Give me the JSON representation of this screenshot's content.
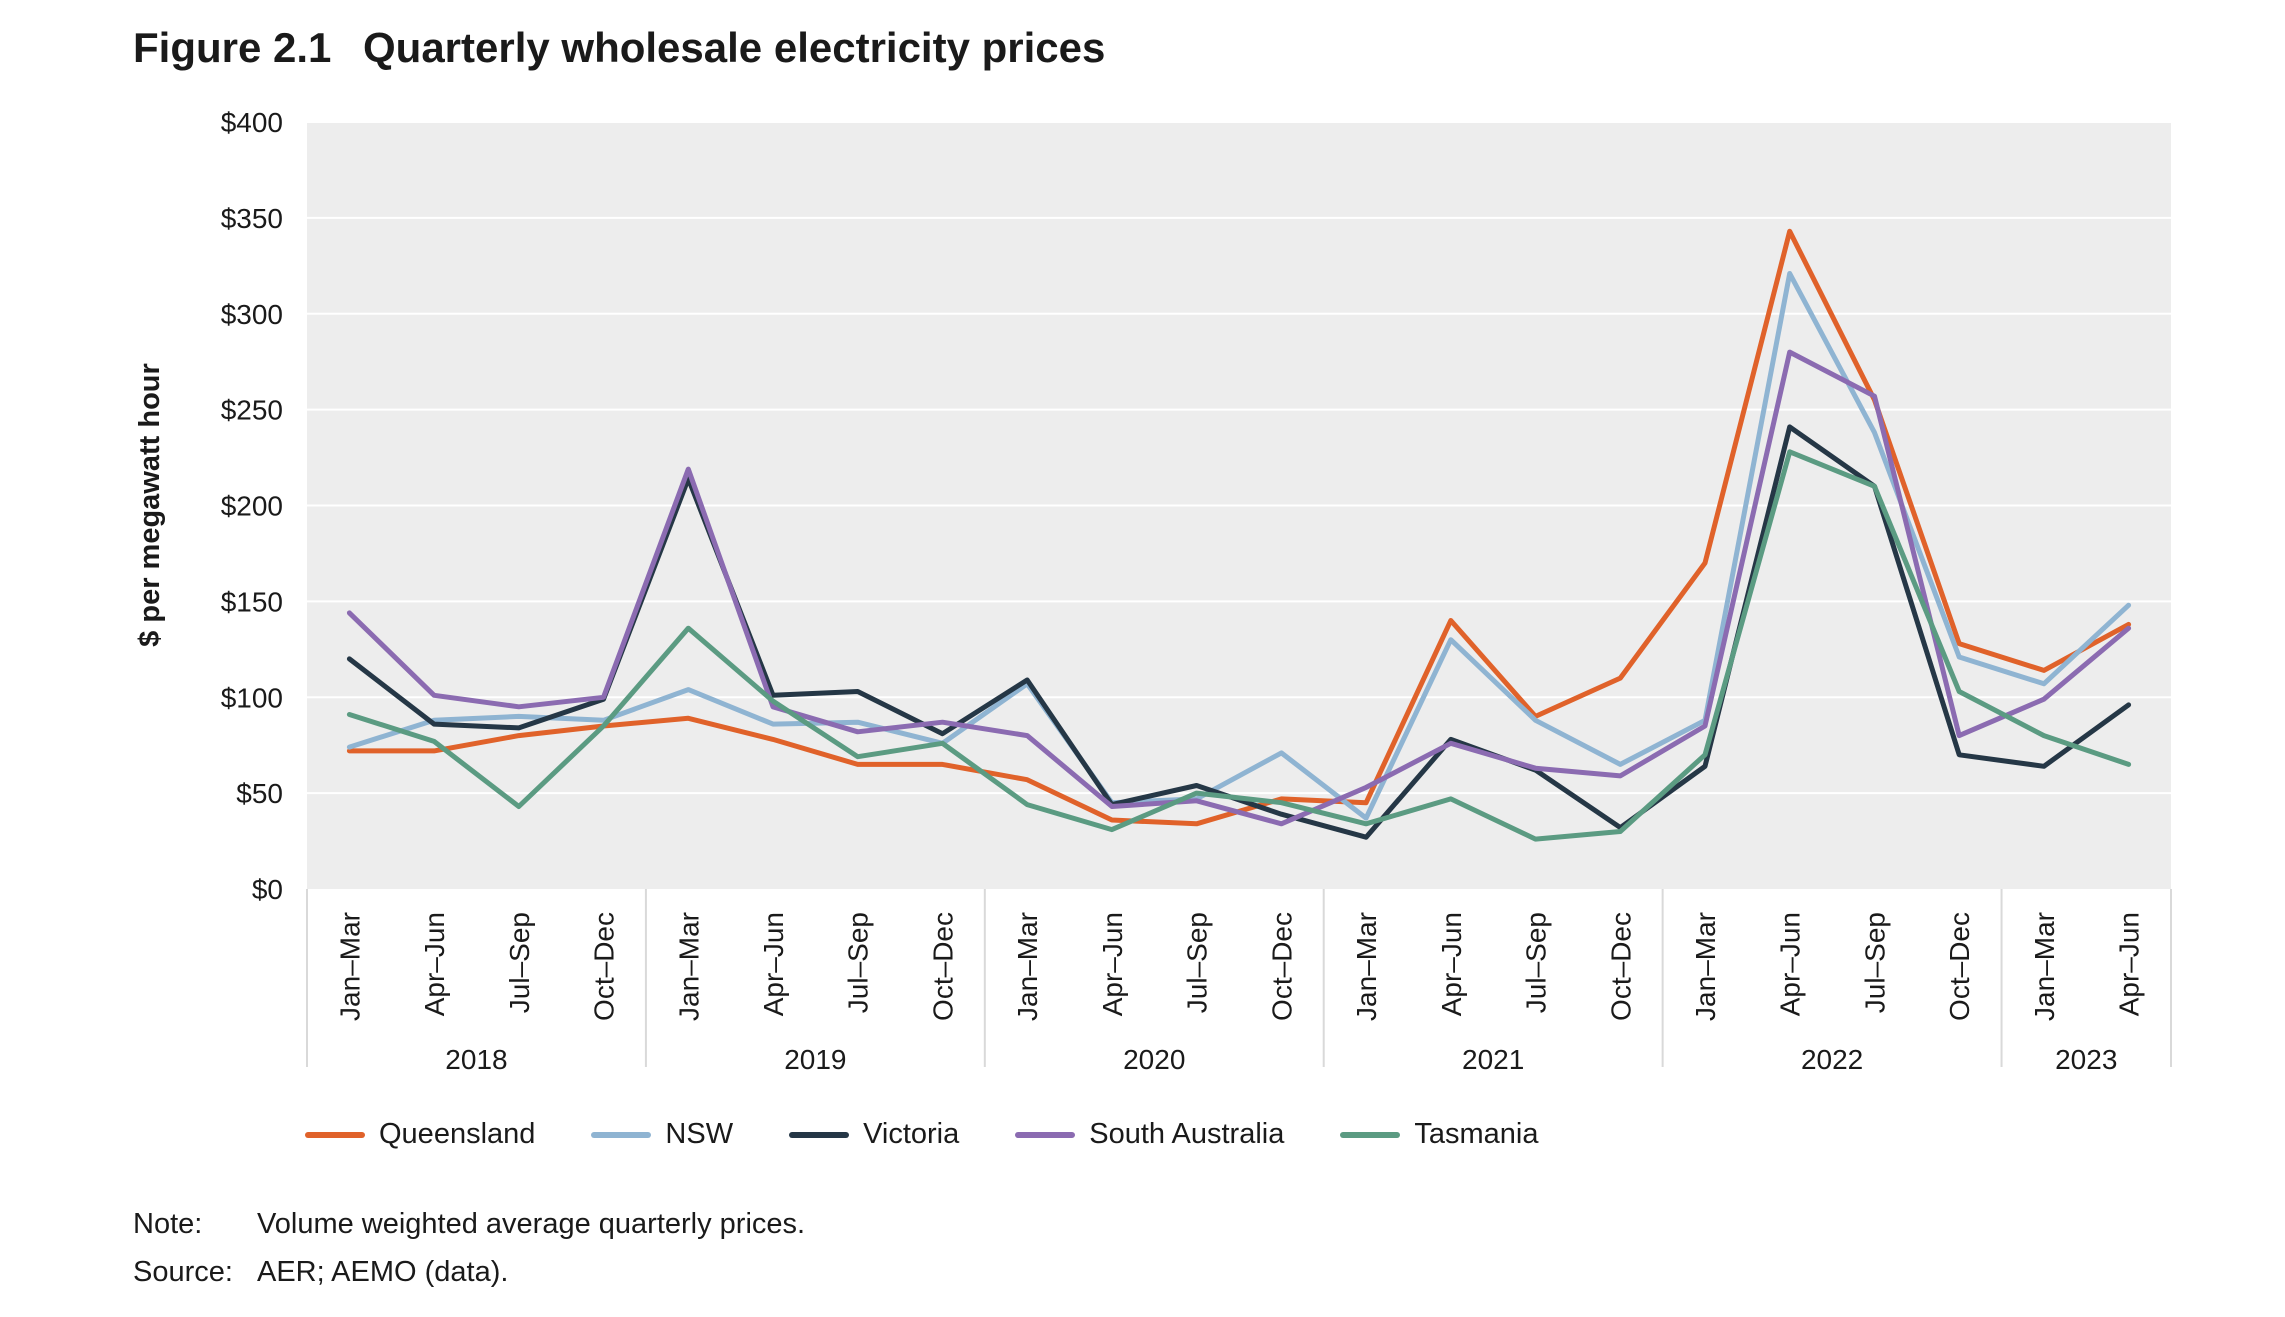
{
  "figure": {
    "number": "Figure 2.1",
    "title": "Quarterly wholesale electricity prices"
  },
  "chart_data": {
    "type": "line",
    "title": "Quarterly wholesale electricity prices",
    "ylabel": "$ per megawatt hour",
    "xlabel": "",
    "ylim": [
      0,
      400
    ],
    "yticks": [
      0,
      50,
      100,
      150,
      200,
      250,
      300,
      350,
      400
    ],
    "ytick_labels": [
      "$0",
      "$50",
      "$100",
      "$150",
      "$200",
      "$250",
      "$300",
      "$350",
      "$400"
    ],
    "grid": true,
    "legend_position": "bottom",
    "categories": [
      "Jan–Mar",
      "Apr–Jun",
      "Jul–Sep",
      "Oct–Dec",
      "Jan–Mar",
      "Apr–Jun",
      "Jul–Sep",
      "Oct–Dec",
      "Jan–Mar",
      "Apr–Jun",
      "Jul–Sep",
      "Oct–Dec",
      "Jan–Mar",
      "Apr–Jun",
      "Jul–Sep",
      "Oct–Dec",
      "Jan–Mar",
      "Apr–Jun",
      "Jul–Sep",
      "Oct–Dec",
      "Jan–Mar",
      "Apr–Jun"
    ],
    "year_groups": [
      {
        "label": "2018",
        "count": 4
      },
      {
        "label": "2019",
        "count": 4
      },
      {
        "label": "2020",
        "count": 4
      },
      {
        "label": "2021",
        "count": 4
      },
      {
        "label": "2022",
        "count": 4
      },
      {
        "label": "2023",
        "count": 2
      }
    ],
    "series": [
      {
        "name": "Queensland",
        "color": "#E0622A",
        "values": [
          72,
          72,
          80,
          85,
          89,
          78,
          65,
          65,
          57,
          36,
          34,
          47,
          45,
          140,
          90,
          110,
          170,
          343,
          255,
          128,
          114,
          138
        ]
      },
      {
        "name": "NSW",
        "color": "#8FB4D2",
        "values": [
          74,
          88,
          90,
          88,
          104,
          86,
          87,
          76,
          107,
          45,
          47,
          71,
          37,
          130,
          88,
          65,
          88,
          321,
          238,
          121,
          107,
          148
        ]
      },
      {
        "name": "Victoria",
        "color": "#253746",
        "values": [
          120,
          86,
          84,
          99,
          214,
          101,
          103,
          81,
          109,
          44,
          54,
          39,
          27,
          78,
          62,
          32,
          64,
          241,
          210,
          70,
          64,
          96
        ]
      },
      {
        "name": "South Australia",
        "color": "#8B6BB1",
        "values": [
          144,
          101,
          95,
          100,
          219,
          95,
          82,
          87,
          80,
          43,
          46,
          34,
          53,
          76,
          63,
          59,
          85,
          280,
          257,
          80,
          99,
          136
        ]
      },
      {
        "name": "Tasmania",
        "color": "#5B9B82",
        "values": [
          91,
          77,
          43,
          85,
          136,
          98,
          69,
          76,
          44,
          31,
          50,
          45,
          34,
          47,
          26,
          30,
          70,
          228,
          210,
          103,
          80,
          65
        ]
      }
    ]
  },
  "notes": {
    "note_label": "Note:",
    "note_text": "Volume weighted average quarterly prices.",
    "source_label": "Source:",
    "source_text": "AER; AEMO (data)."
  }
}
